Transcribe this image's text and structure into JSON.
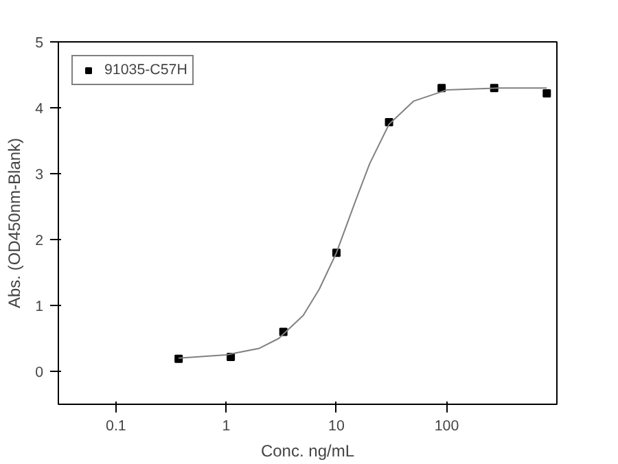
{
  "chart_data": {
    "type": "scatter",
    "xlabel": "Conc. ng/mL",
    "ylabel": "Abs. (OD450nm-Blank)",
    "log": "x",
    "xlim": [
      0.03,
      1000
    ],
    "ylim": [
      -0.5,
      5
    ],
    "xticks": [
      0.1,
      1,
      10,
      100
    ],
    "yticks": [
      0,
      1,
      2,
      3,
      4,
      5
    ],
    "grid": false,
    "legend": "top left",
    "series": [
      {
        "name": "91035-C57H",
        "color": "#000000",
        "marker": "square",
        "x": [
          0.37,
          1.1,
          3.3,
          10,
          30,
          90,
          270,
          810
        ],
        "values": [
          0.19,
          0.22,
          0.6,
          1.8,
          3.78,
          4.3,
          4.3,
          4.22
        ]
      },
      {
        "type": "line",
        "color": "#808080",
        "marker": "none",
        "x": [
          0.37,
          1,
          2,
          3,
          5,
          7,
          10,
          15,
          20,
          30,
          50,
          100,
          300,
          810
        ],
        "values": [
          0.2,
          0.25,
          0.35,
          0.5,
          0.85,
          1.25,
          1.8,
          2.6,
          3.15,
          3.75,
          4.1,
          4.27,
          4.3,
          4.3
        ]
      }
    ]
  }
}
